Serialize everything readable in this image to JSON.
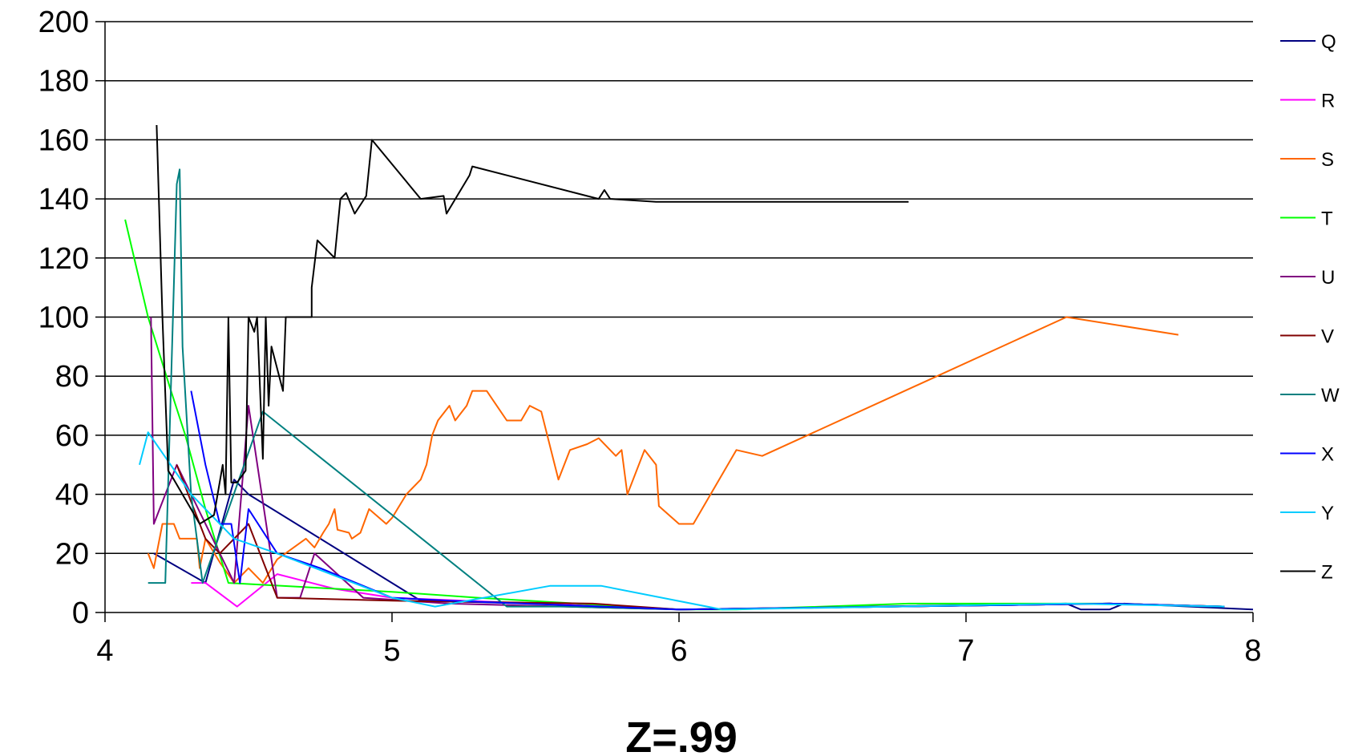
{
  "chart_data": {
    "type": "line",
    "title": "",
    "xlabel": "Z=.99",
    "ylabel": "",
    "xlim": [
      4,
      8
    ],
    "ylim": [
      0,
      200
    ],
    "x_ticks": [
      "4",
      "5",
      "6",
      "7",
      "8"
    ],
    "y_ticks": [
      "0",
      "20",
      "40",
      "60",
      "80",
      "100",
      "120",
      "140",
      "160",
      "180",
      "200"
    ],
    "grid": "horizontal",
    "legend_position": "right",
    "series": [
      {
        "name": "Q",
        "color": "#000080",
        "points": [
          [
            4.17,
            20
          ],
          [
            4.35,
            10
          ],
          [
            4.45,
            45
          ],
          [
            4.5,
            40
          ],
          [
            5.1,
            4
          ],
          [
            5.5,
            3
          ],
          [
            6.0,
            1
          ],
          [
            7.35,
            3
          ],
          [
            7.4,
            1
          ],
          [
            7.5,
            1
          ],
          [
            7.55,
            3
          ],
          [
            8.0,
            1
          ]
        ]
      },
      {
        "name": "R",
        "color": "#FF00FF",
        "points": [
          [
            4.3,
            10
          ],
          [
            4.35,
            10
          ],
          [
            4.46,
            2
          ],
          [
            4.6,
            13
          ],
          [
            4.8,
            8
          ],
          [
            5.0,
            5
          ],
          [
            5.5,
            3
          ],
          [
            6.0,
            1
          ],
          [
            7.5,
            3
          ],
          [
            7.9,
            2
          ]
        ]
      },
      {
        "name": "S",
        "color": "#FF6600",
        "points": [
          [
            4.15,
            20
          ],
          [
            4.17,
            15
          ],
          [
            4.2,
            30
          ],
          [
            4.24,
            30
          ],
          [
            4.26,
            25
          ],
          [
            4.32,
            25
          ],
          [
            4.33,
            15
          ],
          [
            4.35,
            25
          ],
          [
            4.4,
            17
          ],
          [
            4.45,
            10
          ],
          [
            4.5,
            15
          ],
          [
            4.55,
            10
          ],
          [
            4.6,
            18
          ],
          [
            4.7,
            25
          ],
          [
            4.73,
            22
          ],
          [
            4.76,
            27
          ],
          [
            4.78,
            30
          ],
          [
            4.8,
            35
          ],
          [
            4.81,
            28
          ],
          [
            4.85,
            27
          ],
          [
            4.86,
            25
          ],
          [
            4.89,
            27
          ],
          [
            4.92,
            35
          ],
          [
            4.98,
            30
          ],
          [
            5.0,
            32
          ],
          [
            5.05,
            40
          ],
          [
            5.1,
            45
          ],
          [
            5.12,
            50
          ],
          [
            5.14,
            60
          ],
          [
            5.16,
            65
          ],
          [
            5.2,
            70
          ],
          [
            5.22,
            65
          ],
          [
            5.26,
            70
          ],
          [
            5.28,
            75
          ],
          [
            5.33,
            75
          ],
          [
            5.4,
            65
          ],
          [
            5.45,
            65
          ],
          [
            5.48,
            70
          ],
          [
            5.52,
            68
          ],
          [
            5.58,
            45
          ],
          [
            5.62,
            55
          ],
          [
            5.68,
            57
          ],
          [
            5.72,
            59
          ],
          [
            5.78,
            53
          ],
          [
            5.8,
            55
          ],
          [
            5.82,
            40
          ],
          [
            5.88,
            55
          ],
          [
            5.92,
            50
          ],
          [
            5.93,
            36
          ],
          [
            6.0,
            30
          ],
          [
            6.05,
            30
          ],
          [
            6.2,
            55
          ],
          [
            6.29,
            53
          ],
          [
            7.35,
            100
          ],
          [
            7.74,
            94
          ]
        ]
      },
      {
        "name": "T",
        "color": "#00FF00",
        "points": [
          [
            4.07,
            133
          ],
          [
            4.15,
            100
          ],
          [
            4.23,
            75
          ],
          [
            4.28,
            60
          ],
          [
            4.35,
            35
          ],
          [
            4.43,
            10
          ],
          [
            5.0,
            7
          ],
          [
            5.3,
            5
          ],
          [
            6.0,
            1
          ],
          [
            6.2,
            1
          ],
          [
            6.8,
            3
          ],
          [
            7.5,
            3
          ],
          [
            7.9,
            2
          ]
        ]
      },
      {
        "name": "U",
        "color": "#800080",
        "points": [
          [
            4.16,
            100
          ],
          [
            4.17,
            30
          ],
          [
            4.25,
            50
          ],
          [
            4.3,
            40
          ],
          [
            4.4,
            20
          ],
          [
            4.45,
            10
          ],
          [
            4.5,
            70
          ],
          [
            4.6,
            5
          ],
          [
            4.68,
            5
          ],
          [
            4.73,
            20
          ],
          [
            4.9,
            5
          ],
          [
            5.2,
            3
          ],
          [
            6.0,
            1
          ],
          [
            7.5,
            3
          ],
          [
            7.9,
            2
          ]
        ]
      },
      {
        "name": "V",
        "color": "#800000",
        "points": [
          [
            4.25,
            50
          ],
          [
            4.35,
            25
          ],
          [
            4.4,
            20
          ],
          [
            4.5,
            30
          ],
          [
            4.6,
            5
          ],
          [
            5.0,
            4
          ],
          [
            5.7,
            3
          ],
          [
            6.0,
            1
          ],
          [
            7.5,
            3
          ],
          [
            7.9,
            2
          ]
        ]
      },
      {
        "name": "W",
        "color": "#008080",
        "points": [
          [
            4.15,
            10
          ],
          [
            4.21,
            10
          ],
          [
            4.25,
            145
          ],
          [
            4.26,
            150
          ],
          [
            4.27,
            90
          ],
          [
            4.3,
            40
          ],
          [
            4.34,
            10
          ],
          [
            4.55,
            68
          ],
          [
            5.4,
            2
          ],
          [
            5.6,
            2
          ],
          [
            6.0,
            1
          ],
          [
            7.5,
            3
          ],
          [
            7.9,
            2
          ]
        ]
      },
      {
        "name": "X",
        "color": "#0000FF",
        "points": [
          [
            4.3,
            75
          ],
          [
            4.35,
            50
          ],
          [
            4.4,
            30
          ],
          [
            4.44,
            30
          ],
          [
            4.47,
            10
          ],
          [
            4.5,
            35
          ],
          [
            4.6,
            20
          ],
          [
            4.75,
            15
          ],
          [
            5.0,
            5
          ],
          [
            5.2,
            4
          ],
          [
            6.0,
            1
          ],
          [
            7.5,
            3
          ],
          [
            7.9,
            2
          ]
        ]
      },
      {
        "name": "Y",
        "color": "#00CCFF",
        "points": [
          [
            4.12,
            50
          ],
          [
            4.15,
            61
          ],
          [
            4.3,
            40
          ],
          [
            4.45,
            25
          ],
          [
            4.6,
            20
          ],
          [
            5.0,
            5
          ],
          [
            5.15,
            2
          ],
          [
            5.55,
            9
          ],
          [
            5.73,
            9
          ],
          [
            6.15,
            1
          ],
          [
            7.35,
            3
          ],
          [
            7.9,
            2
          ]
        ]
      },
      {
        "name": "Z",
        "color": "#000000",
        "points": [
          [
            4.18,
            165
          ],
          [
            4.2,
            100
          ],
          [
            4.22,
            48
          ],
          [
            4.24,
            45
          ],
          [
            4.33,
            30
          ],
          [
            4.38,
            33
          ],
          [
            4.41,
            50
          ],
          [
            4.42,
            40
          ],
          [
            4.43,
            100
          ],
          [
            4.44,
            44
          ],
          [
            4.46,
            44
          ],
          [
            4.49,
            48
          ],
          [
            4.5,
            100
          ],
          [
            4.52,
            95
          ],
          [
            4.53,
            100
          ],
          [
            4.55,
            52
          ],
          [
            4.56,
            100
          ],
          [
            4.57,
            70
          ],
          [
            4.58,
            90
          ],
          [
            4.62,
            75
          ],
          [
            4.63,
            100
          ],
          [
            4.72,
            100
          ],
          [
            4.72,
            110
          ],
          [
            4.74,
            126
          ],
          [
            4.8,
            120
          ],
          [
            4.82,
            140
          ],
          [
            4.84,
            142
          ],
          [
            4.87,
            135
          ],
          [
            4.91,
            141
          ],
          [
            4.93,
            160
          ],
          [
            5.1,
            140
          ],
          [
            5.18,
            141
          ],
          [
            5.19,
            135
          ],
          [
            5.27,
            148
          ],
          [
            5.28,
            151
          ],
          [
            5.72,
            140
          ],
          [
            5.74,
            143
          ],
          [
            5.76,
            140
          ],
          [
            5.92,
            139
          ],
          [
            6.8,
            139
          ]
        ]
      }
    ]
  }
}
